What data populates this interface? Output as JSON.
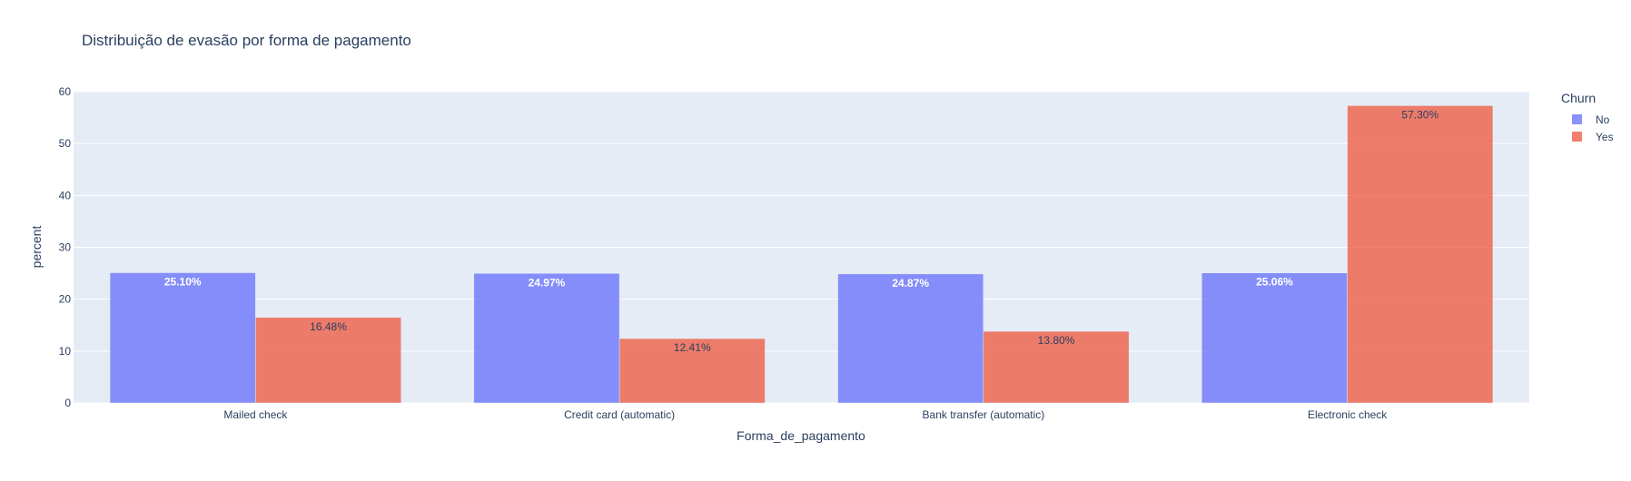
{
  "chart_data": {
    "type": "bar",
    "barmode": "group",
    "title": "Distribuição de evasão por forma de pagamento",
    "xlabel": "Forma_de_pagamento",
    "ylabel": "percent",
    "ylim": [
      0,
      60
    ],
    "yticks": [
      0,
      10,
      20,
      30,
      40,
      50,
      60
    ],
    "grid": true,
    "categories": [
      "Mailed check",
      "Credit card (automatic)",
      "Bank transfer (automatic)",
      "Electronic check"
    ],
    "legend": {
      "title": "Churn",
      "placement": "top-right"
    },
    "series": [
      {
        "name": "No",
        "color": "#636efa",
        "values": [
          25.1,
          24.97,
          24.87,
          25.06
        ],
        "labels": [
          "25.10%",
          "24.97%",
          "24.87%",
          "25.06%"
        ],
        "label_color": "#ffffff"
      },
      {
        "name": "Yes",
        "color": "#ef553b",
        "values": [
          16.48,
          12.41,
          13.8,
          57.3
        ],
        "labels": [
          "16.48%",
          "12.41%",
          "13.80%",
          "57.30%"
        ],
        "label_color": "#2a3f5f"
      }
    ],
    "plot_bgcolor": "#e5ecf6",
    "gridcolor": "#ffffff",
    "text_color": "#2a3f5f"
  }
}
